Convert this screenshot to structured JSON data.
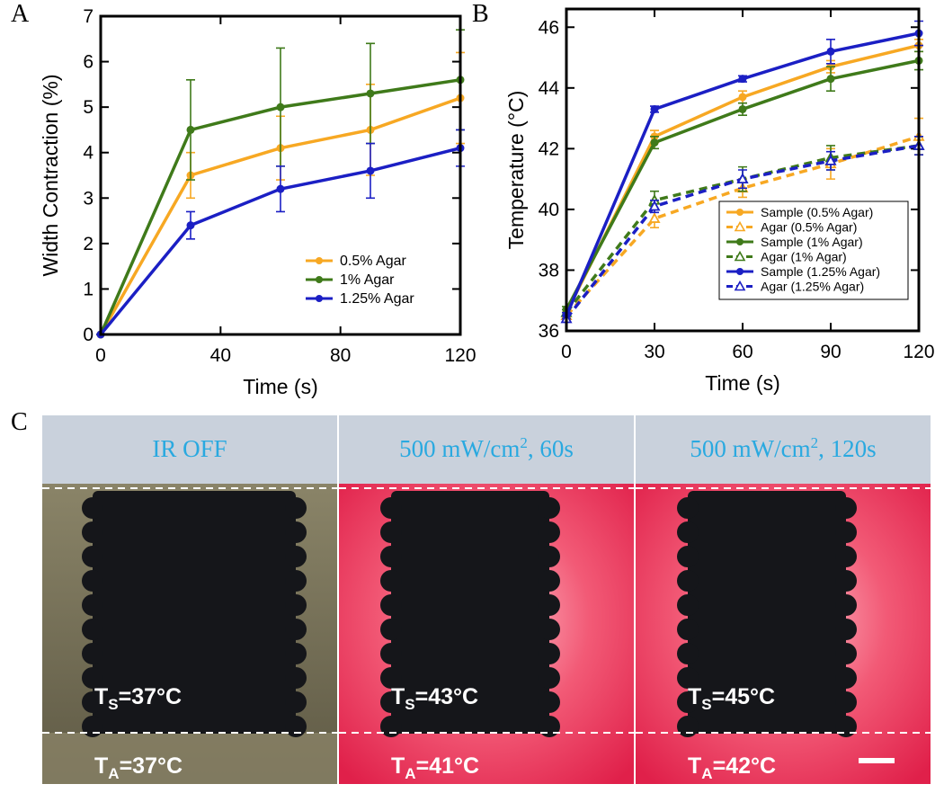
{
  "chart_data": [
    {
      "type": "line",
      "panel_label": "A",
      "xlabel": "Time (s)",
      "ylabel": "Width Contraction (%)",
      "x": [
        0,
        30,
        60,
        90,
        120
      ],
      "xlim": [
        0,
        120
      ],
      "xticks": [
        0,
        40,
        80,
        120
      ],
      "ylim": [
        0,
        7
      ],
      "yticks": [
        0,
        1,
        2,
        3,
        4,
        5,
        6,
        7
      ],
      "legend": "lower right",
      "series": [
        {
          "name": "0.5% Agar",
          "color": "#f7a823",
          "marker": "circle",
          "values": [
            0,
            3.5,
            4.1,
            4.5,
            5.2
          ],
          "errors": [
            0,
            0.5,
            0.7,
            1.0,
            1.0
          ]
        },
        {
          "name": "1% Agar",
          "color": "#3f7a1a",
          "marker": "circle",
          "values": [
            0,
            4.5,
            5.0,
            5.3,
            5.6
          ],
          "errors": [
            0,
            1.1,
            1.3,
            1.1,
            1.1
          ]
        },
        {
          "name": "1.25% Agar",
          "color": "#1b1fc4",
          "marker": "circle",
          "values": [
            0,
            2.4,
            3.2,
            3.6,
            4.1
          ],
          "errors": [
            0,
            0.3,
            0.5,
            0.6,
            0.4
          ]
        }
      ]
    },
    {
      "type": "line",
      "panel_label": "B",
      "xlabel": "Time (s)",
      "ylabel": "Temperature (°C)",
      "x": [
        0,
        30,
        60,
        90,
        120
      ],
      "xlim": [
        0,
        120
      ],
      "xticks": [
        0,
        30,
        60,
        90,
        120
      ],
      "ylim": [
        36,
        46.6
      ],
      "yticks": [
        36,
        38,
        40,
        42,
        44,
        46
      ],
      "legend": "lower right",
      "series": [
        {
          "name": "Sample (0.5% Agar)",
          "color": "#f7a823",
          "marker": "circle",
          "dashed": false,
          "values": [
            36.6,
            42.4,
            43.7,
            44.7,
            45.4
          ],
          "errors": [
            0.1,
            0.2,
            0.2,
            0.2,
            0.2
          ]
        },
        {
          "name": "Agar (0.5% Agar)",
          "color": "#f7a823",
          "marker": "triangle",
          "dashed": true,
          "values": [
            36.5,
            39.7,
            40.7,
            41.5,
            42.4
          ],
          "errors": [
            0.1,
            0.3,
            0.3,
            0.5,
            0.6
          ]
        },
        {
          "name": "Sample (1% Agar)",
          "color": "#3f7a1a",
          "marker": "circle",
          "dashed": false,
          "values": [
            36.7,
            42.2,
            43.3,
            44.3,
            44.9
          ],
          "errors": [
            0.1,
            0.2,
            0.2,
            0.4,
            0.3
          ]
        },
        {
          "name": "Agar (1% Agar)",
          "color": "#3f7a1a",
          "marker": "triangle",
          "dashed": true,
          "values": [
            36.6,
            40.3,
            41.0,
            41.7,
            42.1
          ],
          "errors": [
            0.1,
            0.3,
            0.4,
            0.4,
            0.3
          ]
        },
        {
          "name": "Sample (1.25% Agar)",
          "color": "#1b1fc4",
          "marker": "circle",
          "dashed": false,
          "values": [
            36.5,
            43.3,
            44.3,
            45.2,
            45.8
          ],
          "errors": [
            0.1,
            0.1,
            0.1,
            0.4,
            0.4
          ]
        },
        {
          "name": "Agar (1.25% Agar)",
          "color": "#1b1fc4",
          "marker": "triangle",
          "dashed": true,
          "values": [
            36.4,
            40.1,
            41.0,
            41.6,
            42.1
          ],
          "errors": [
            0.1,
            0.2,
            0.3,
            0.3,
            0.3
          ]
        }
      ]
    }
  ],
  "panel_c": {
    "panel_label": "C",
    "panels": [
      {
        "header": {
          "text": "IR OFF"
        },
        "sample": {
          "symbol": "T",
          "sub": "S",
          "value": "=37°C"
        },
        "agar": {
          "symbol": "T",
          "sub": "A",
          "value": "=37°C"
        }
      },
      {
        "header": {
          "text": "500 mW/cm",
          "sup": "2",
          "rest": ", 60s"
        },
        "sample": {
          "symbol": "T",
          "sub": "S",
          "value": "=43°C"
        },
        "agar": {
          "symbol": "T",
          "sub": "A",
          "value": "=41°C"
        }
      },
      {
        "header": {
          "text": "500 mW/cm",
          "sup": "2",
          "rest": ", 120s"
        },
        "sample": {
          "symbol": "T",
          "sub": "S",
          "value": "=45°C"
        },
        "agar": {
          "symbol": "T",
          "sub": "A",
          "value": "=42°C"
        }
      }
    ]
  }
}
